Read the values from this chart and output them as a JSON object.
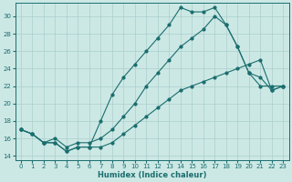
{
  "xlabel": "Humidex (Indice chaleur)",
  "bg_color": "#cce8e5",
  "grid_color": "#aacfcc",
  "line_color": "#1a6e6e",
  "xlim": [
    -0.5,
    23.5
  ],
  "ylim": [
    13.5,
    31.5
  ],
  "xticks": [
    0,
    1,
    2,
    3,
    4,
    5,
    6,
    7,
    8,
    9,
    10,
    11,
    12,
    13,
    14,
    15,
    16,
    17,
    18,
    19,
    20,
    21,
    22,
    23
  ],
  "yticks": [
    14,
    16,
    18,
    20,
    22,
    24,
    26,
    28,
    30
  ],
  "line1_x": [
    0,
    1,
    2,
    3,
    4,
    5,
    6,
    7,
    8,
    9,
    10,
    11,
    12,
    13,
    14,
    15,
    16,
    17,
    18,
    19,
    20,
    21,
    22,
    23
  ],
  "line1_y": [
    17.0,
    16.5,
    15.5,
    15.5,
    14.5,
    15.0,
    15.0,
    15.0,
    15.5,
    16.5,
    17.5,
    18.5,
    19.5,
    20.5,
    21.5,
    22.0,
    22.5,
    23.0,
    23.5,
    24.0,
    24.5,
    25.0,
    21.5,
    22.0
  ],
  "line2_x": [
    0,
    1,
    2,
    3,
    4,
    5,
    6,
    7,
    8,
    9,
    10,
    11,
    12,
    13,
    14,
    15,
    16,
    17,
    18,
    19,
    20,
    21,
    22,
    23
  ],
  "line2_y": [
    17.0,
    16.5,
    15.5,
    15.5,
    14.5,
    15.0,
    15.0,
    18.0,
    21.0,
    23.0,
    24.5,
    26.0,
    27.5,
    29.0,
    31.0,
    30.5,
    30.5,
    31.0,
    29.0,
    26.5,
    23.5,
    22.0,
    22.0,
    22.0
  ],
  "line3_x": [
    0,
    1,
    2,
    3,
    4,
    5,
    6,
    7,
    8,
    9,
    10,
    11,
    12,
    13,
    14,
    15,
    16,
    17,
    18,
    19,
    20,
    21,
    22,
    23
  ],
  "line3_y": [
    17.0,
    16.5,
    15.5,
    16.0,
    15.0,
    15.5,
    15.5,
    16.0,
    17.0,
    18.5,
    20.0,
    22.0,
    23.5,
    25.0,
    26.5,
    27.5,
    28.5,
    30.0,
    29.0,
    26.5,
    23.5,
    23.0,
    21.5,
    22.0
  ]
}
